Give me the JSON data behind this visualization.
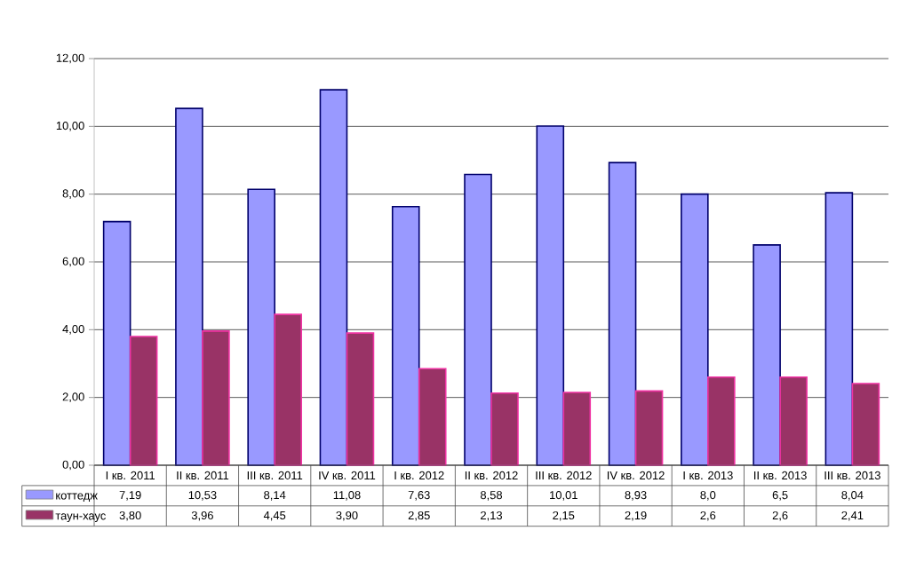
{
  "chart_data": {
    "type": "bar",
    "categories": [
      "I кв. 2011",
      "II кв. 2011",
      "III кв. 2011",
      "IV кв. 2011",
      "I кв. 2012",
      "II кв. 2012",
      "III кв. 2012",
      "IV кв. 2012",
      "I кв. 2013",
      "II кв. 2013",
      "III кв. 2013"
    ],
    "series": [
      {
        "name": "коттедж",
        "color": "#9999ff",
        "values": [
          7.19,
          10.53,
          8.14,
          11.08,
          7.63,
          8.58,
          10.01,
          8.93,
          8.0,
          6.5,
          8.04
        ],
        "value_labels": [
          "7,19",
          "10,53",
          "8,14",
          "11,08",
          "7,63",
          "8,58",
          "10,01",
          "8,93",
          "8,0",
          "6,5",
          "8,04"
        ]
      },
      {
        "name": "таун-хаус",
        "color": "#993366",
        "values": [
          3.8,
          3.96,
          4.45,
          3.9,
          2.85,
          2.13,
          2.15,
          2.19,
          2.6,
          2.6,
          2.41
        ],
        "value_labels": [
          "3,80",
          "3,96",
          "4,45",
          "3,90",
          "2,85",
          "2,13",
          "2,15",
          "2,19",
          "2,6",
          "2,6",
          "2,41"
        ]
      }
    ],
    "ylim": [
      0,
      12
    ],
    "yticks": [
      {
        "value": 0,
        "label": "0,00"
      },
      {
        "value": 2,
        "label": "2,00"
      },
      {
        "value": 4,
        "label": "4,00"
      },
      {
        "value": 6,
        "label": "6,00"
      },
      {
        "value": 8,
        "label": "8,00"
      },
      {
        "value": 10,
        "label": "10,00"
      },
      {
        "value": 12,
        "label": "12,00"
      }
    ],
    "grid": "y",
    "legend": "bottom"
  }
}
